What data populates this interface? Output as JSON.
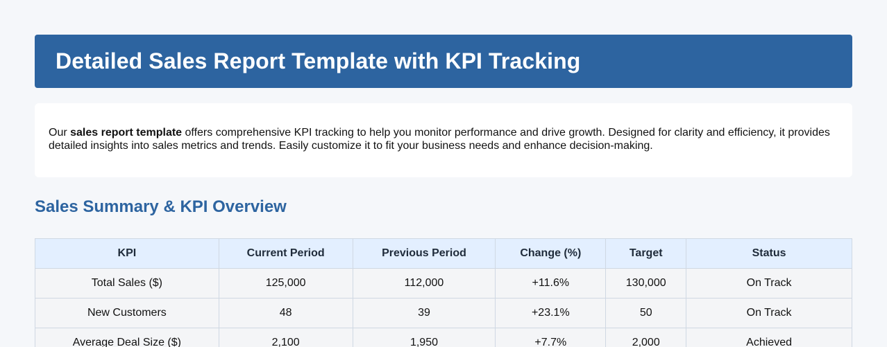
{
  "header": {
    "title": "Detailed Sales Report Template with KPI Tracking"
  },
  "intro": {
    "prefix": "Our ",
    "bold": "sales report template",
    "suffix": " offers comprehensive KPI tracking to help you monitor performance and drive growth. Designed for clarity and efficiency, it provides detailed insights into sales metrics and trends. Easily customize it to fit your business needs and enhance decision-making."
  },
  "section": {
    "title": "Sales Summary & KPI Overview"
  },
  "table": {
    "headers": [
      "KPI",
      "Current Period",
      "Previous Period",
      "Change (%)",
      "Target",
      "Status"
    ],
    "rows": [
      {
        "kpi": "Total Sales ($)",
        "current": "125,000",
        "previous": "112,000",
        "change": "+11.6%",
        "target": "130,000",
        "status": "On Track"
      },
      {
        "kpi": "New Customers",
        "current": "48",
        "previous": "39",
        "change": "+23.1%",
        "target": "50",
        "status": "On Track"
      },
      {
        "kpi": "Average Deal Size ($)",
        "current": "2,100",
        "previous": "1,950",
        "change": "+7.7%",
        "target": "2,000",
        "status": "Achieved"
      }
    ]
  },
  "colors": {
    "brand": "#2d64a0",
    "on_track": "#f0a020",
    "achieved": "#1e8a2a",
    "header_row_bg": "#e3efff"
  }
}
